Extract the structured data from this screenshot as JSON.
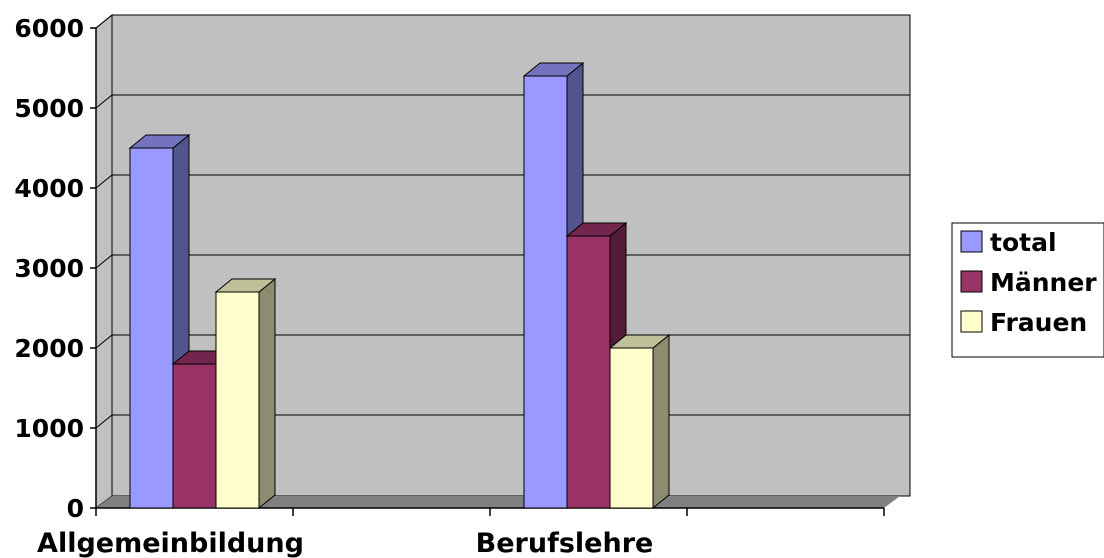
{
  "chart_data": {
    "type": "bar",
    "title": "",
    "xlabel": "",
    "ylabel": "",
    "categories": [
      "Allgemeinbildung",
      "",
      "Berufslehre",
      ""
    ],
    "series": [
      {
        "name": "total",
        "values": [
          4500,
          null,
          5400,
          null
        ],
        "color": "#9999ff"
      },
      {
        "name": "Männer",
        "values": [
          1800,
          null,
          3400,
          null
        ],
        "color": "#993366"
      },
      {
        "name": "Frauen",
        "values": [
          2700,
          null,
          2000,
          null
        ],
        "color": "#ffffcc"
      }
    ],
    "ylim": [
      0,
      6000
    ],
    "yticks": [
      0,
      1000,
      2000,
      3000,
      4000,
      5000,
      6000
    ],
    "grid": true,
    "legend_position": "right",
    "style": "3d-clustered-column"
  }
}
